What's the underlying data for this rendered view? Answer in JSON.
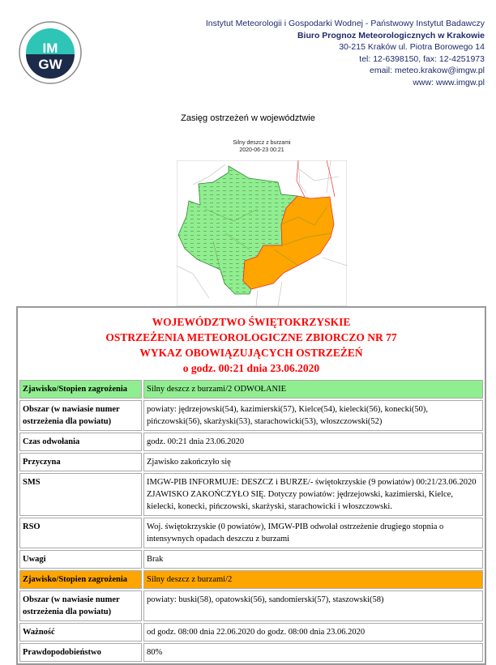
{
  "header": {
    "institute": "Instytut Meteorologii i Gospodarki Wodnej - Państwowy Instytut Badawczy",
    "bureau": "Biuro Prognoz Meteorologicznych w Krakowie",
    "address": "30-215 Kraków ul. Piotra Borowego 14",
    "phone": "tel: 12-6398150, fax: 12-4251973",
    "email": "email: meteo.krakow@imgw.pl",
    "www": "www: www.imgw.pl",
    "logo_text": "IMGW"
  },
  "page_title": "Zasięg ostrzeżeń w województwie",
  "map": {
    "caption": "Silny deszcz z burzami",
    "datetime": "2020-06-23 00:21",
    "colors": {
      "cancelled": "#90ee90",
      "level2": "#ffa500"
    }
  },
  "report": {
    "heading": [
      "WOJEWÓDZTWO ŚWIĘTOKRZYSKIE",
      "OSTRZEŻENIA METEOROLOGICZNE ZBIORCZO NR 77",
      "WYKAZ OBOWIĄZUJĄCYCH OSTRZEŻEŃ",
      "o godz. 00:21 dnia 23.06.2020"
    ],
    "warning1": {
      "phenomenon_label": "Zjawisko/Stopien zagrożenia",
      "phenomenon": "Silny deszcz z burzami/2 ODWOŁANIE",
      "area_label": "Obszar (w nawiasie numer ostrzeżenia dla powiatu)",
      "area": "powiaty: jędrzejowski(54), kazimierski(57), Kielce(54), kielecki(56), konecki(50), pińczowski(56), skarżyski(53), starachowicki(53), włoszczowski(52)",
      "time_label": "Czas odwołania",
      "time": "godz. 00:21 dnia 23.06.2020",
      "reason_label": "Przyczyna",
      "reason": "Zjawisko zakończyło się",
      "sms_label": "SMS",
      "sms": "IMGW-PIB INFORMUJE: DESZCZ i BURZE/- świętokrzyskie (9 powiatów) 00:21/23.06.2020 ZJAWISKO ZAKOŃCZYŁO SIĘ. Dotyczy powiatów: jędrzejowski, kazimierski, Kielce, kielecki, konecki, pińczowski, skarżyski, starachowicki i włoszczowski.",
      "rso_label": "RSO",
      "rso": "Woj. świętokrzyskie (0 powiatów), IMGW-PIB odwołał ostrzeżenie drugiego stopnia o intensywnych opadach deszczu z burzami",
      "notes_label": "Uwagi",
      "notes": "Brak"
    },
    "warning2": {
      "phenomenon_label": "Zjawisko/Stopien zagrożenia",
      "phenomenon": "Silny deszcz z burzami/2",
      "area_label": "Obszar (w nawiasie numer ostrzeżenia dla powiatu)",
      "area": "powiaty: buski(58), opatowski(56), sandomierski(57), staszowski(58)",
      "validity_label": "Ważność",
      "validity": "od godz. 08:00 dnia 22.06.2020 do godz. 08:00 dnia 23.06.2020",
      "probability_label": "Prawdopodobieństwo",
      "probability": "80%"
    }
  }
}
